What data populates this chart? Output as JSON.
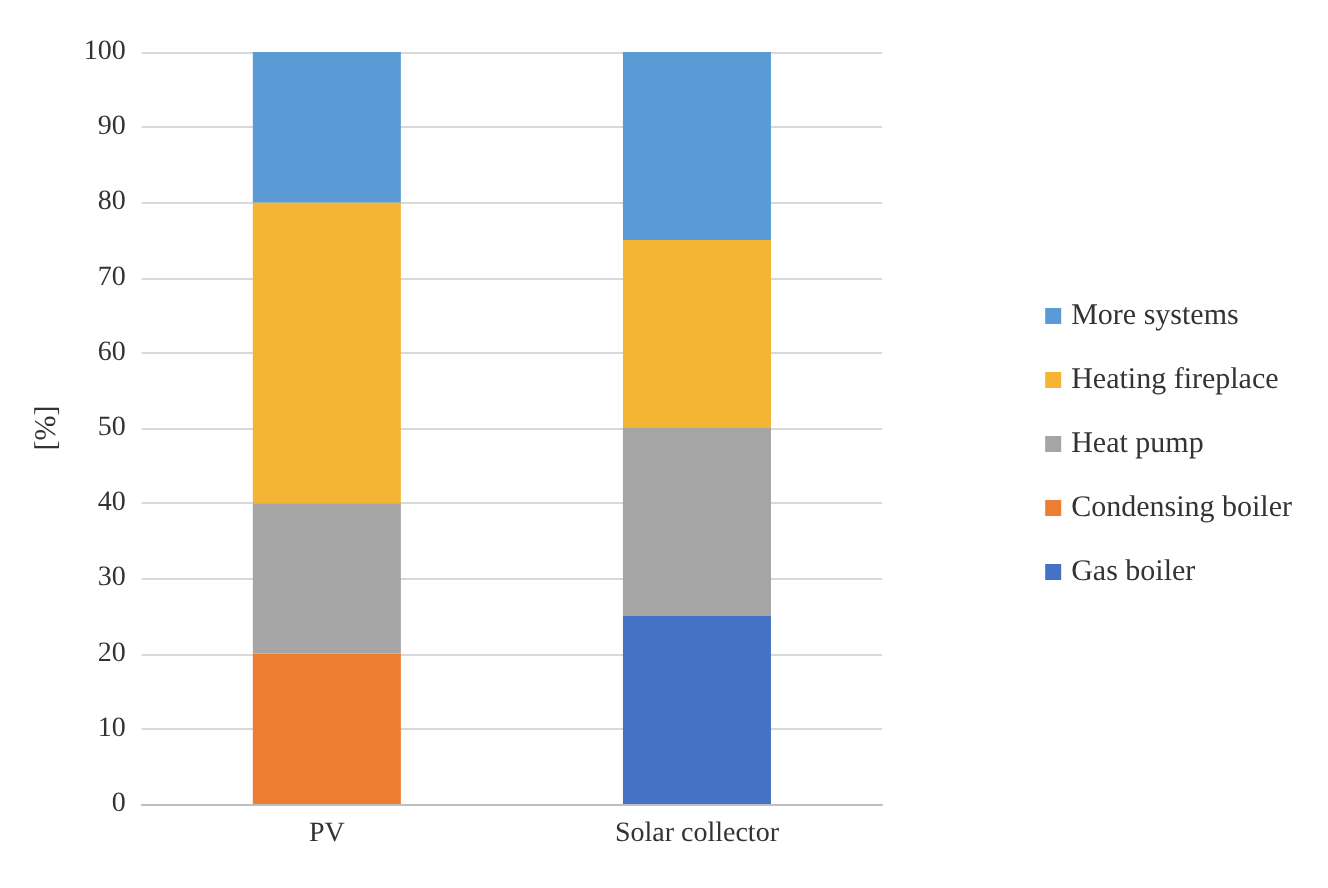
{
  "chart_data": {
    "type": "bar",
    "stacked": true,
    "ylabel": "[%]",
    "categories": [
      "PV",
      "Solar collector"
    ],
    "series": [
      {
        "name": "Gas boiler",
        "color": "#4472c4",
        "values": [
          0,
          25
        ]
      },
      {
        "name": "Condensing boiler",
        "color": "#ed7d31",
        "values": [
          20,
          0
        ]
      },
      {
        "name": "Heat pump",
        "color": "#a5a5a5",
        "values": [
          20,
          25
        ]
      },
      {
        "name": "Heating fireplace",
        "color": "#f4b535",
        "values": [
          40,
          25
        ]
      },
      {
        "name": "More systems",
        "color": "#5b9bd5",
        "values": [
          20,
          25
        ]
      }
    ],
    "ylim": [
      0,
      100
    ],
    "yticks": [
      0,
      10,
      20,
      30,
      40,
      50,
      60,
      70,
      80,
      90,
      100
    ],
    "grid": "y",
    "legend": "right"
  }
}
